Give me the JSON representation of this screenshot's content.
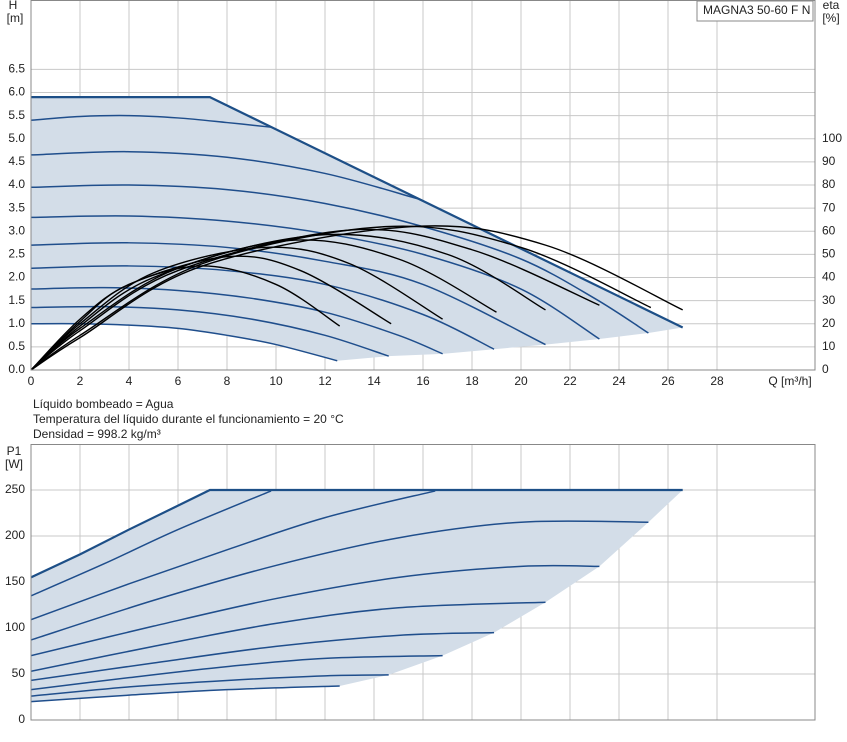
{
  "notes": [
    "Líquido bombeado = Agua",
    "Temperatura del líquido durante el funcionamiento = 20 °C",
    "Densidad = 998.2 kg/m³"
  ],
  "chart_data": [
    {
      "type": "line",
      "y_label": "H",
      "y_unit": "[m]",
      "y2_label": "eta",
      "y2_unit": "[%]",
      "x_label": "Q [m³/h]",
      "annotation": "MAGNA3 50-60 F N",
      "xlim": [
        0,
        32
      ],
      "xticks": [
        0,
        2,
        4,
        6,
        8,
        10,
        12,
        14,
        16,
        18,
        20,
        22,
        24,
        26,
        28
      ],
      "ylim": [
        0,
        8
      ],
      "yticks": [
        {
          "value": 0,
          "label": "0.0"
        },
        0.5,
        {
          "value": 1,
          "label": "1.0"
        },
        1.5,
        {
          "value": 2,
          "label": "2.0"
        },
        2.5,
        {
          "value": 3,
          "label": "3.0"
        },
        3.5,
        {
          "value": 4,
          "label": "4.0"
        },
        4.5,
        {
          "value": 5,
          "label": "5.0"
        },
        5.5,
        {
          "value": 6,
          "label": "6.0"
        },
        6.5
      ],
      "y2lim": [
        0,
        160
      ],
      "y2ticks": [
        0,
        10,
        20,
        30,
        40,
        50,
        60,
        70,
        80,
        90,
        100
      ],
      "grid": true,
      "area_color": "#d3dde8",
      "series": [
        {
          "color": "#1f4e8c",
          "x": [
            0,
            2,
            4,
            6,
            8,
            10,
            12.5
          ],
          "values": [
            1.0,
            1.0,
            0.97,
            0.9,
            0.75,
            0.55,
            0.2
          ]
        },
        {
          "color": "#1f4e8c",
          "x": [
            0,
            3,
            6,
            9,
            12,
            14.6
          ],
          "values": [
            1.35,
            1.37,
            1.3,
            1.1,
            0.75,
            0.3
          ]
        },
        {
          "color": "#1f4e8c",
          "x": [
            0,
            3,
            6,
            9,
            12,
            15,
            16.8
          ],
          "values": [
            1.75,
            1.78,
            1.72,
            1.55,
            1.25,
            0.75,
            0.35
          ]
        },
        {
          "color": "#1f4e8c",
          "x": [
            0,
            4,
            8,
            12,
            16,
            18.9
          ],
          "values": [
            2.2,
            2.25,
            2.15,
            1.85,
            1.2,
            0.45
          ]
        },
        {
          "color": "#1f4e8c",
          "x": [
            0,
            4,
            8,
            12,
            16,
            21
          ],
          "values": [
            2.7,
            2.75,
            2.65,
            2.35,
            1.85,
            0.55
          ]
        },
        {
          "color": "#1f4e8c",
          "x": [
            0,
            4,
            8,
            12,
            16,
            20,
            23.2
          ],
          "values": [
            3.3,
            3.33,
            3.22,
            2.95,
            2.5,
            1.75,
            0.67
          ]
        },
        {
          "color": "#1f4e8c",
          "x": [
            0,
            4,
            8,
            12,
            16,
            20,
            23,
            25.2
          ],
          "values": [
            3.95,
            4.0,
            3.9,
            3.6,
            3.1,
            2.4,
            1.55,
            0.8
          ]
        },
        {
          "color": "#1f4e8c",
          "x": [
            0,
            4,
            8,
            12,
            15.8
          ],
          "values": [
            4.65,
            4.72,
            4.6,
            4.25,
            3.7
          ]
        },
        {
          "color": "#1f4e8c",
          "x": [
            0,
            2,
            4,
            6,
            8,
            9.8
          ],
          "values": [
            5.4,
            5.48,
            5.5,
            5.45,
            5.35,
            5.25
          ]
        },
        {
          "color": "#1d4f87",
          "x": [
            0,
            7.3,
            26.6
          ],
          "values": [
            5.9,
            5.9,
            0.92
          ]
        },
        {
          "color": "#000000",
          "axis": "y2",
          "x": [
            0,
            2,
            4,
            7,
            10,
            12.6
          ],
          "values": [
            0,
            22,
            37,
            45,
            37,
            19
          ]
        },
        {
          "color": "#000000",
          "axis": "y2",
          "x": [
            0,
            2,
            4,
            8,
            11,
            14.7
          ],
          "values": [
            0,
            21,
            37,
            49,
            43,
            20
          ]
        },
        {
          "color": "#000000",
          "axis": "y2",
          "x": [
            0,
            2,
            5,
            9.5,
            13,
            16.8
          ],
          "values": [
            0,
            20,
            42,
            53,
            46,
            22
          ]
        },
        {
          "color": "#000000",
          "axis": "y2",
          "x": [
            0,
            2,
            5,
            10.5,
            15,
            19
          ],
          "values": [
            0,
            19,
            40,
            56,
            48,
            25
          ]
        },
        {
          "color": "#000000",
          "axis": "y2",
          "x": [
            0,
            2,
            6,
            12,
            17,
            21
          ],
          "values": [
            0,
            18,
            44,
            58.5,
            50,
            26
          ]
        },
        {
          "color": "#000000",
          "axis": "y2",
          "x": [
            0,
            2,
            6,
            13,
            18,
            23.2
          ],
          "values": [
            0,
            17,
            43,
            60.5,
            52,
            28
          ]
        },
        {
          "color": "#000000",
          "axis": "y2",
          "x": [
            0,
            2,
            7,
            14.5,
            20,
            25.3
          ],
          "values": [
            0,
            15,
            46,
            62,
            53,
            27
          ]
        },
        {
          "color": "#000000",
          "axis": "y2",
          "x": [
            0,
            2,
            7,
            15.5,
            21,
            26.6
          ],
          "values": [
            0,
            14,
            45,
            62,
            54,
            26
          ]
        }
      ]
    },
    {
      "type": "line",
      "y_label": "P1",
      "y_unit": "[W]",
      "xlim": [
        0,
        32
      ],
      "ylim": [
        0,
        300
      ],
      "yticks": [
        0,
        50,
        100,
        150,
        200,
        250
      ],
      "grid": true,
      "area_color": "#d3dde8",
      "series": [
        {
          "color": "#1f4e8c",
          "x": [
            0,
            4,
            8,
            12.6
          ],
          "values": [
            20,
            27,
            33,
            37
          ]
        },
        {
          "color": "#1f4e8c",
          "x": [
            0,
            4,
            8,
            12,
            14.6
          ],
          "values": [
            26,
            36,
            43,
            48,
            49
          ]
        },
        {
          "color": "#1f4e8c",
          "x": [
            0,
            4,
            8,
            12,
            16.8
          ],
          "values": [
            33,
            46,
            58,
            67,
            70
          ]
        },
        {
          "color": "#1f4e8c",
          "x": [
            0,
            5,
            10,
            15,
            18.9
          ],
          "values": [
            43,
            62,
            80,
            92,
            95
          ]
        },
        {
          "color": "#1f4e8c",
          "x": [
            0,
            5,
            10,
            15,
            21
          ],
          "values": [
            53,
            80,
            105,
            122,
            128
          ]
        },
        {
          "color": "#1f4e8c",
          "x": [
            0,
            5,
            10,
            15,
            20,
            23.2
          ],
          "values": [
            70,
            102,
            132,
            155,
            167,
            167
          ]
        },
        {
          "color": "#1f4e8c",
          "x": [
            0,
            5,
            10,
            15,
            20,
            25.2
          ],
          "values": [
            87,
            130,
            168,
            198,
            215,
            215
          ]
        },
        {
          "color": "#1f4e8c",
          "x": [
            0,
            4,
            8,
            12,
            16.5
          ],
          "values": [
            109,
            148,
            185,
            220,
            249
          ]
        },
        {
          "color": "#1f4e8c",
          "x": [
            0,
            3,
            6,
            9.8
          ],
          "values": [
            135,
            170,
            207,
            249
          ]
        },
        {
          "color": "#1d4f87",
          "x": [
            0,
            2,
            4,
            6,
            7.3,
            26.6
          ],
          "values": [
            155,
            180,
            207,
            233,
            250,
            250
          ]
        }
      ]
    }
  ]
}
